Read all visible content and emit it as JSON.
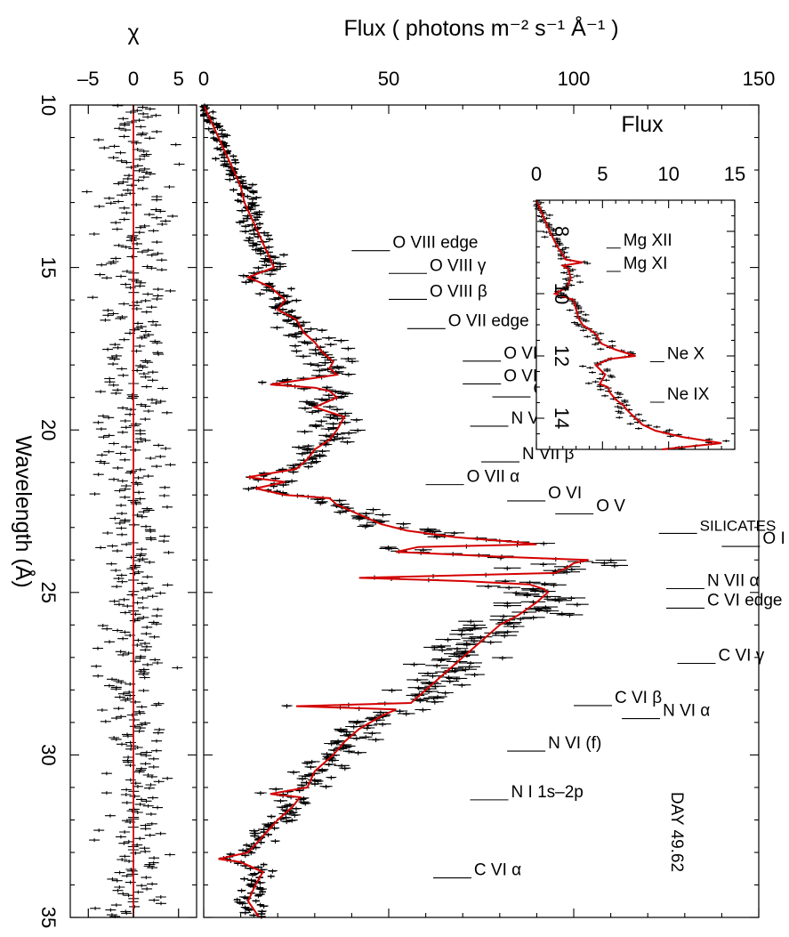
{
  "chart_data": [
    {
      "panel": "chi",
      "type": "line",
      "orientation": "rotated",
      "title": "χ",
      "ylabel": "Wavelength (Å)",
      "xlim": [
        -7,
        7
      ],
      "ylim": [
        10,
        35
      ],
      "x_tick_labels": [
        "–5",
        "0",
        "5"
      ],
      "x_tick_values": [
        -5,
        0,
        5
      ],
      "y_tick_labels": [
        "10",
        "15",
        "20",
        "25",
        "30",
        "35"
      ],
      "y_tick_values": [
        10,
        15,
        20,
        25,
        30,
        35
      ],
      "zero_line_color": "#d40000",
      "residual_color": "#000000",
      "residual_amplitude": 2.5
    },
    {
      "panel": "main",
      "type": "line",
      "orientation": "rotated",
      "title": "Flux ( photons m⁻² s⁻¹ Å⁻¹ )",
      "xlim": [
        0,
        150
      ],
      "ylim": [
        10,
        35
      ],
      "x_tick_labels": [
        "0",
        "50",
        "100",
        "150"
      ],
      "x_tick_values": [
        0,
        50,
        100,
        150
      ],
      "model_color": "#d40000",
      "data_color": "#000000",
      "model": {
        "wavelength": [
          10.0,
          10.5,
          11.0,
          11.5,
          12.0,
          12.5,
          13.0,
          13.5,
          14.0,
          14.5,
          15.0,
          15.3,
          15.6,
          16.0,
          16.3,
          16.6,
          17.0,
          17.3,
          17.6,
          17.9,
          18.1,
          18.3,
          18.6,
          18.7,
          18.8,
          19.0,
          19.3,
          19.6,
          20.0,
          20.3,
          20.6,
          20.9,
          21.2,
          21.45,
          21.6,
          21.8,
          22.0,
          22.1,
          22.3,
          22.6,
          22.9,
          23.1,
          23.3,
          23.45,
          23.52,
          23.6,
          23.75,
          23.9,
          24.0,
          24.1,
          24.25,
          24.4,
          24.55,
          24.65,
          24.75,
          24.9,
          25.0,
          25.3,
          25.7,
          26.0,
          26.5,
          27.0,
          27.5,
          28.0,
          28.4,
          28.5,
          28.6,
          28.8,
          29.2,
          29.6,
          30.0,
          30.5,
          31.0,
          31.2,
          31.3,
          31.6,
          32.0,
          32.5,
          33.0,
          33.2,
          33.3,
          33.6,
          34.0,
          34.5,
          35.0
        ],
        "flux": [
          0,
          2,
          4,
          6,
          8,
          10,
          11,
          13,
          15,
          17,
          19,
          12,
          18,
          22,
          20,
          25,
          27,
          30,
          32,
          35,
          34,
          36,
          18,
          30,
          34,
          36,
          30,
          38,
          36,
          34,
          30,
          28,
          25,
          12,
          22,
          14,
          22,
          34,
          36,
          42,
          48,
          55,
          68,
          85,
          90,
          58,
          52,
          80,
          104,
          100,
          98,
          95,
          42,
          70,
          88,
          92,
          93,
          90,
          85,
          80,
          75,
          70,
          65,
          60,
          56,
          25,
          52,
          48,
          42,
          38,
          35,
          30,
          28,
          18,
          26,
          24,
          20,
          16,
          12,
          4,
          10,
          16,
          14,
          12,
          15
        ]
      },
      "annotations": [
        {
          "text": "O VIII edge",
          "wavelength": 14.4,
          "flux": 40
        },
        {
          "text": "O VIII γ",
          "wavelength": 15.1,
          "flux": 50
        },
        {
          "text": "O VIII β",
          "wavelength": 15.9,
          "flux": 50
        },
        {
          "text": "O VII edge",
          "wavelength": 16.8,
          "flux": 55
        },
        {
          "text": "O VII γ",
          "wavelength": 17.8,
          "flux": 70
        },
        {
          "text": "O VII β",
          "wavelength": 18.5,
          "flux": 70
        },
        {
          "text": "O VIII α",
          "wavelength": 18.9,
          "flux": 78
        },
        {
          "text": "N VII γ",
          "wavelength": 19.8,
          "flux": 72
        },
        {
          "text": "N VII β",
          "wavelength": 20.9,
          "flux": 75
        },
        {
          "text": "O VII α",
          "wavelength": 21.6,
          "flux": 60
        },
        {
          "text": "O VI",
          "wavelength": 22.1,
          "flux": 82
        },
        {
          "text": "O V",
          "wavelength": 22.5,
          "flux": 95
        },
        {
          "text": "SILICATES",
          "wavelength": 23.1,
          "flux": 123
        },
        {
          "text": "O I",
          "wavelength": 23.5,
          "flux": 140
        },
        {
          "text": "N VII α",
          "wavelength": 24.8,
          "flux": 125
        },
        {
          "text": "C VI edge",
          "wavelength": 25.4,
          "flux": 125
        },
        {
          "text": "C VI γ",
          "wavelength": 27.1,
          "flux": 128
        },
        {
          "text": "C VI β",
          "wavelength": 28.4,
          "flux": 100
        },
        {
          "text": "N VI α",
          "wavelength": 28.8,
          "flux": 113
        },
        {
          "text": "N VI (f)",
          "wavelength": 29.8,
          "flux": 82
        },
        {
          "text": "N I 1s–2p",
          "wavelength": 31.3,
          "flux": 72
        },
        {
          "text": "C VI α",
          "wavelength": 33.7,
          "flux": 62
        }
      ],
      "side_label": "DAY 49.62"
    },
    {
      "panel": "inset",
      "type": "line",
      "orientation": "rotated",
      "title": "Flux",
      "xlim": [
        0,
        15
      ],
      "ylim": [
        7,
        15
      ],
      "x_tick_labels": [
        "0",
        "5",
        "10",
        "15"
      ],
      "x_tick_values": [
        0,
        5,
        10,
        15
      ],
      "y_tick_labels": [
        "8",
        "10",
        "12",
        "14"
      ],
      "y_tick_values": [
        8,
        10,
        12,
        14
      ],
      "model": {
        "wavelength": [
          7.0,
          7.5,
          8.0,
          8.5,
          8.9,
          9.0,
          9.1,
          9.2,
          9.5,
          9.8,
          10.0,
          10.2,
          10.5,
          10.8,
          11.0,
          11.3,
          11.6,
          11.8,
          12.0,
          12.1,
          12.3,
          12.6,
          12.9,
          13.0,
          13.2,
          13.4,
          13.6,
          13.8,
          14.0,
          14.2,
          14.4,
          14.6,
          14.8,
          15.0
        ],
        "flux": [
          0,
          0.5,
          1,
          1.6,
          2.2,
          3.5,
          2.0,
          2.4,
          2.6,
          2.3,
          1.4,
          2.8,
          3.0,
          3.2,
          3.5,
          4.5,
          4.9,
          6.0,
          7.5,
          5.5,
          4.5,
          5.2,
          4.8,
          5.4,
          5.6,
          6.0,
          6.6,
          7.0,
          7.5,
          8.0,
          9.0,
          11.0,
          14.0,
          9.5
        ]
      },
      "annotations": [
        {
          "text": "Mg XII",
          "wavelength": 8.45,
          "flux": 5.3
        },
        {
          "text": "Mg XI",
          "wavelength": 9.2,
          "flux": 5.3
        },
        {
          "text": "Ne X",
          "wavelength": 12.1,
          "flux": 8.6
        },
        {
          "text": "Ne IX",
          "wavelength": 13.4,
          "flux": 8.6
        }
      ]
    }
  ]
}
